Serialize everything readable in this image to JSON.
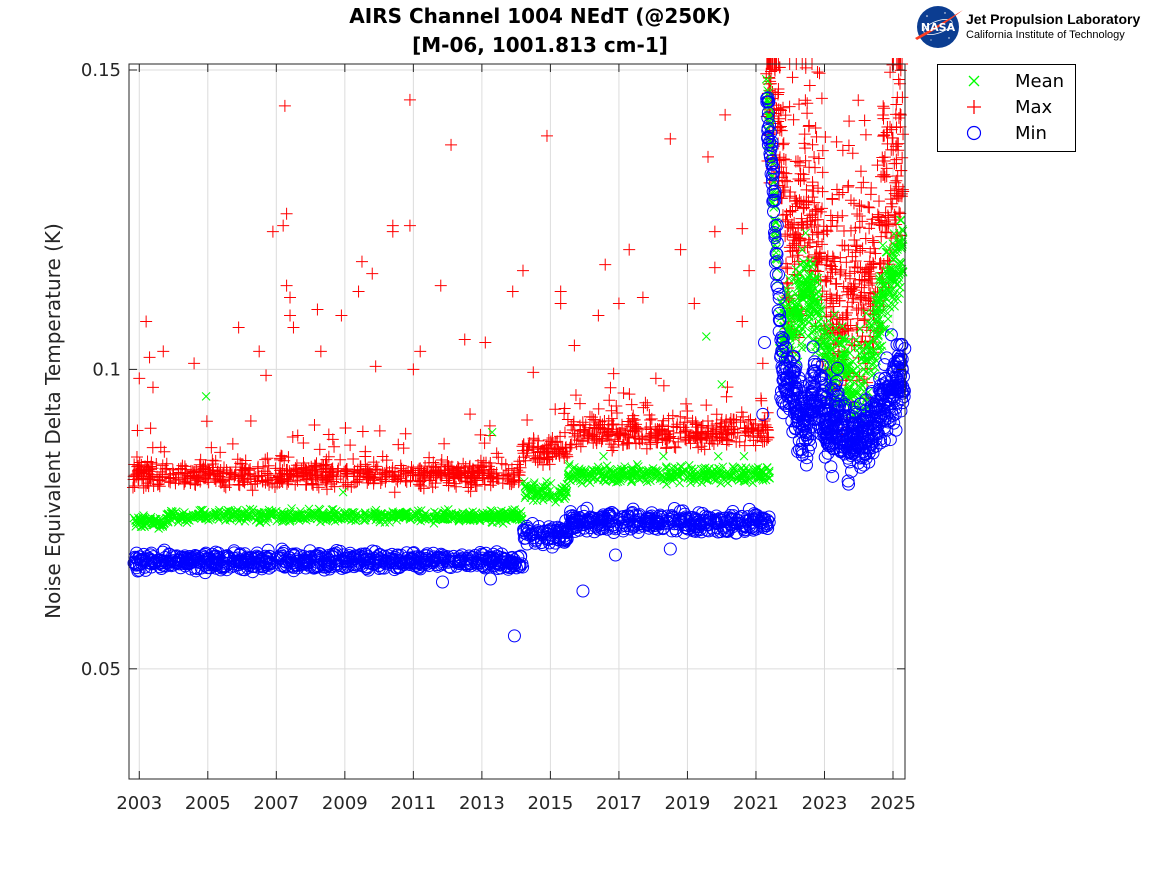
{
  "header": {
    "title_line1": "AIRS Channel 1004 NEdT (@250K)",
    "title_line2": "[M-06, 1001.813 cm-1]"
  },
  "logo": {
    "nasa_text": "NASA",
    "org_name": "Jet Propulsion Laboratory",
    "org_sub": "California Institute of Technology"
  },
  "colors": {
    "mean": "#00ff00",
    "max": "#ff0000",
    "min": "#0000ff",
    "grid": "#dcdcdc",
    "axis": "#262626"
  },
  "chart_data": {
    "type": "scatter",
    "title": "AIRS Channel 1004 NEdT (@250K) [M-06, 1001.813 cm-1]",
    "xlabel": "",
    "ylabel": "Noise Equivalent Delta Temperature (K)",
    "xlim": [
      2002.7,
      2025.35
    ],
    "ylim": [
      0.0316,
      0.151
    ],
    "grid": true,
    "x_ticks": [
      2003,
      2005,
      2007,
      2009,
      2011,
      2013,
      2015,
      2017,
      2019,
      2021,
      2023,
      2025
    ],
    "x_tick_labels": [
      "2003",
      "2005",
      "2007",
      "2009",
      "2011",
      "2013",
      "2015",
      "2017",
      "2019",
      "2021",
      "2023",
      "2025"
    ],
    "y_ticks": [
      0.05,
      0.1,
      0.15
    ],
    "y_tick_labels": [
      "0.05",
      "0.1",
      "0.15"
    ],
    "legend_position": "outside-top-right",
    "series": [
      {
        "name": "Mean",
        "marker": "x",
        "segments": [
          {
            "x0": 2002.8,
            "x1": 2003.8,
            "level": 0.0745,
            "spread": 0.0008
          },
          {
            "x0": 2003.8,
            "x1": 2014.2,
            "level": 0.0755,
            "spread": 0.0008
          },
          {
            "x0": 2014.2,
            "x1": 2015.5,
            "level": 0.0795,
            "spread": 0.0012
          },
          {
            "x0": 2015.5,
            "x1": 2021.4,
            "level": 0.0825,
            "spread": 0.0012
          }
        ],
        "outliers": [
          [
            2004.95,
            0.0955
          ],
          [
            2008.95,
            0.0795
          ],
          [
            2013.3,
            0.0895
          ],
          [
            2019.55,
            0.1055
          ],
          [
            2020.0,
            0.0975
          ],
          [
            2016.55,
            0.0855
          ],
          [
            2018.3,
            0.0855
          ],
          [
            2019.9,
            0.0855
          ],
          [
            2020.65,
            0.0855
          ]
        ],
        "trend_after_2021": [
          [
            2021.3,
            0.149
          ],
          [
            2021.5,
            0.13
          ],
          [
            2021.7,
            0.108
          ],
          [
            2022.0,
            0.106
          ],
          [
            2022.3,
            0.112
          ],
          [
            2022.6,
            0.113
          ],
          [
            2022.9,
            0.108
          ],
          [
            2023.2,
            0.098
          ],
          [
            2023.5,
            0.102
          ],
          [
            2023.8,
            0.096
          ],
          [
            2024.1,
            0.097
          ],
          [
            2024.4,
            0.104
          ],
          [
            2024.7,
            0.112
          ],
          [
            2025.0,
            0.116
          ],
          [
            2025.3,
            0.12
          ]
        ]
      },
      {
        "name": "Max",
        "marker": "+",
        "segments": [
          {
            "x0": 2002.8,
            "x1": 2014.2,
            "level": 0.0825,
            "spread": 0.0018
          },
          {
            "x0": 2014.2,
            "x1": 2015.5,
            "level": 0.0865,
            "spread": 0.0018
          },
          {
            "x0": 2015.5,
            "x1": 2021.4,
            "level": 0.0895,
            "spread": 0.002
          }
        ],
        "outliers": [
          [
            2003.0,
            0.0985
          ],
          [
            2003.2,
            0.108
          ],
          [
            2003.3,
            0.102
          ],
          [
            2003.7,
            0.103
          ],
          [
            2003.4,
            0.097
          ],
          [
            2004.6,
            0.101
          ],
          [
            2005.9,
            0.107
          ],
          [
            2006.5,
            0.103
          ],
          [
            2006.9,
            0.123
          ],
          [
            2007.25,
            0.144
          ],
          [
            2007.3,
            0.126
          ],
          [
            2007.2,
            0.124
          ],
          [
            2007.3,
            0.114
          ],
          [
            2007.4,
            0.112
          ],
          [
            2007.4,
            0.109
          ],
          [
            2007.5,
            0.107
          ],
          [
            2008.2,
            0.11
          ],
          [
            2008.3,
            0.103
          ],
          [
            2008.9,
            0.109
          ],
          [
            2009.4,
            0.113
          ],
          [
            2009.5,
            0.118
          ],
          [
            2009.8,
            0.116
          ],
          [
            2010.4,
            0.124
          ],
          [
            2010.4,
            0.123
          ],
          [
            2010.9,
            0.124
          ],
          [
            2010.9,
            0.145
          ],
          [
            2011.2,
            0.103
          ],
          [
            2011.8,
            0.114
          ],
          [
            2012.1,
            0.1375
          ],
          [
            2012.5,
            0.105
          ],
          [
            2013.1,
            0.1045
          ],
          [
            2013.9,
            0.113
          ],
          [
            2014.2,
            0.1165
          ],
          [
            2014.9,
            0.139
          ],
          [
            2015.3,
            0.111
          ],
          [
            2015.3,
            0.113
          ],
          [
            2015.7,
            0.104
          ],
          [
            2016.4,
            0.109
          ],
          [
            2016.6,
            0.1175
          ],
          [
            2017.0,
            0.111
          ],
          [
            2017.3,
            0.12
          ],
          [
            2017.7,
            0.112
          ],
          [
            2018.5,
            0.1385
          ],
          [
            2018.8,
            0.12
          ],
          [
            2019.2,
            0.111
          ],
          [
            2019.6,
            0.1355
          ],
          [
            2019.8,
            0.123
          ],
          [
            2019.8,
            0.117
          ],
          [
            2020.1,
            0.1425
          ],
          [
            2020.6,
            0.1235
          ],
          [
            2020.6,
            0.108
          ],
          [
            2020.8,
            0.1165
          ],
          [
            2021.2,
            0.101
          ],
          [
            2009.9,
            0.1005
          ],
          [
            2011.0,
            0.1
          ],
          [
            2006.7,
            0.099
          ],
          [
            2014.5,
            0.0995
          ]
        ],
        "trend_after_2021": [
          [
            2021.3,
            0.1505
          ],
          [
            2021.6,
            0.141
          ],
          [
            2021.9,
            0.122
          ],
          [
            2022.2,
            0.119
          ],
          [
            2022.5,
            0.13
          ],
          [
            2022.8,
            0.123
          ],
          [
            2023.0,
            0.114
          ],
          [
            2023.3,
            0.11
          ],
          [
            2023.6,
            0.108
          ],
          [
            2023.9,
            0.113
          ],
          [
            2024.2,
            0.108
          ],
          [
            2024.5,
            0.118
          ],
          [
            2024.8,
            0.126
          ],
          [
            2025.1,
            0.132
          ],
          [
            2025.3,
            0.138
          ]
        ]
      },
      {
        "name": "Min",
        "marker": "o",
        "segments": [
          {
            "x0": 2002.8,
            "x1": 2014.2,
            "level": 0.068,
            "spread": 0.0012
          },
          {
            "x0": 2014.2,
            "x1": 2015.5,
            "level": 0.0725,
            "spread": 0.0013
          },
          {
            "x0": 2015.5,
            "x1": 2021.4,
            "level": 0.0745,
            "spread": 0.0014
          }
        ],
        "outliers": [
          [
            2011.85,
            0.0645
          ],
          [
            2013.25,
            0.065
          ],
          [
            2013.95,
            0.0555
          ],
          [
            2015.95,
            0.063
          ],
          [
            2016.9,
            0.069
          ],
          [
            2018.5,
            0.07
          ],
          [
            2021.2,
            0.0925
          ],
          [
            2021.25,
            0.1045
          ]
        ],
        "trend_after_2021": [
          [
            2021.3,
            0.147
          ],
          [
            2021.45,
            0.135
          ],
          [
            2021.6,
            0.12
          ],
          [
            2021.75,
            0.1
          ],
          [
            2022.0,
            0.098
          ],
          [
            2022.3,
            0.093
          ],
          [
            2022.5,
            0.09
          ],
          [
            2022.7,
            0.098
          ],
          [
            2022.9,
            0.095
          ],
          [
            2023.1,
            0.09
          ],
          [
            2023.4,
            0.092
          ],
          [
            2023.7,
            0.088
          ],
          [
            2024.0,
            0.089
          ],
          [
            2024.3,
            0.09
          ],
          [
            2024.6,
            0.093
          ],
          [
            2024.9,
            0.096
          ],
          [
            2025.2,
            0.098
          ],
          [
            2025.35,
            0.099
          ]
        ]
      }
    ]
  }
}
